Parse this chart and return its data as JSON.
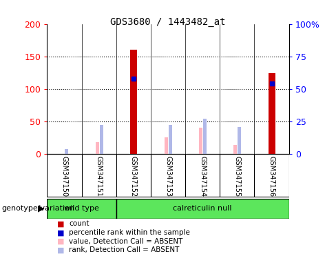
{
  "title": "GDS3680 / 1443482_at",
  "samples": [
    "GSM347150",
    "GSM347151",
    "GSM347152",
    "GSM347153",
    "GSM347154",
    "GSM347155",
    "GSM347156"
  ],
  "count_values": [
    0,
    0,
    160,
    0,
    0,
    0,
    124
  ],
  "percentile_rank": [
    0,
    0,
    116,
    0,
    0,
    0,
    108
  ],
  "absent_value": [
    0,
    18,
    0,
    25,
    40,
    14,
    0
  ],
  "absent_rank": [
    7,
    44,
    0,
    44,
    54,
    41,
    0
  ],
  "left_ylim": [
    0,
    200
  ],
  "left_yticks": [
    0,
    50,
    100,
    150,
    200
  ],
  "right_yticklabels": [
    "0",
    "25",
    "50",
    "75",
    "100%"
  ],
  "count_color": "#CC0000",
  "percentile_color": "#0000CC",
  "absent_value_color": "#FFB6C1",
  "absent_rank_color": "#B0B8E8",
  "sample_bg_color": "#D3D3D3",
  "wt_color": "#5CE65C",
  "cr_color": "#5CE65C",
  "genotype_label": "genotype/variation",
  "plot_bg": "#ffffff"
}
